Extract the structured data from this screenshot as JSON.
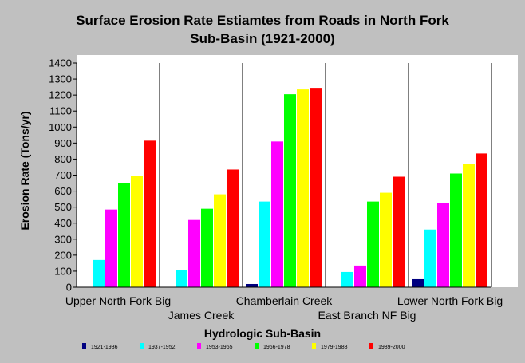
{
  "chart_data": {
    "type": "bar",
    "title_lines": [
      "Surface Erosion Rate Estiamtes from Roads in North Fork",
      "Sub-Basin (1921-2000)"
    ],
    "xlabel": "Hydrologic Sub-Basin",
    "ylabel": "Erosion Rate (Tons/yr)",
    "ylim": [
      0,
      1400
    ],
    "yticks": [
      0,
      100,
      200,
      300,
      400,
      500,
      600,
      700,
      800,
      900,
      1000,
      1100,
      1200,
      1300,
      1400
    ],
    "grid": false,
    "legend_position": "bottom",
    "categories": [
      "Upper North Fork Big",
      "James Creek",
      "Chamberlain Creek",
      "East Branch NF Big",
      "Lower North Fork Big"
    ],
    "series": [
      {
        "name": "1921-1936",
        "color": "#000080",
        "values": [
          0,
          0,
          20,
          0,
          50
        ]
      },
      {
        "name": "1937-1952",
        "color": "#00ffff",
        "values": [
          170,
          105,
          535,
          95,
          360
        ]
      },
      {
        "name": "1953-1965",
        "color": "#ff00ff",
        "values": [
          485,
          420,
          910,
          135,
          525
        ]
      },
      {
        "name": "1966-1978",
        "color": "#00ff00",
        "values": [
          650,
          490,
          1205,
          535,
          710
        ]
      },
      {
        "name": "1979-1988",
        "color": "#ffff00",
        "values": [
          695,
          580,
          1235,
          590,
          770
        ]
      },
      {
        "name": "1989-2000",
        "color": "#ff0000",
        "values": [
          915,
          735,
          1245,
          690,
          835
        ]
      }
    ]
  }
}
